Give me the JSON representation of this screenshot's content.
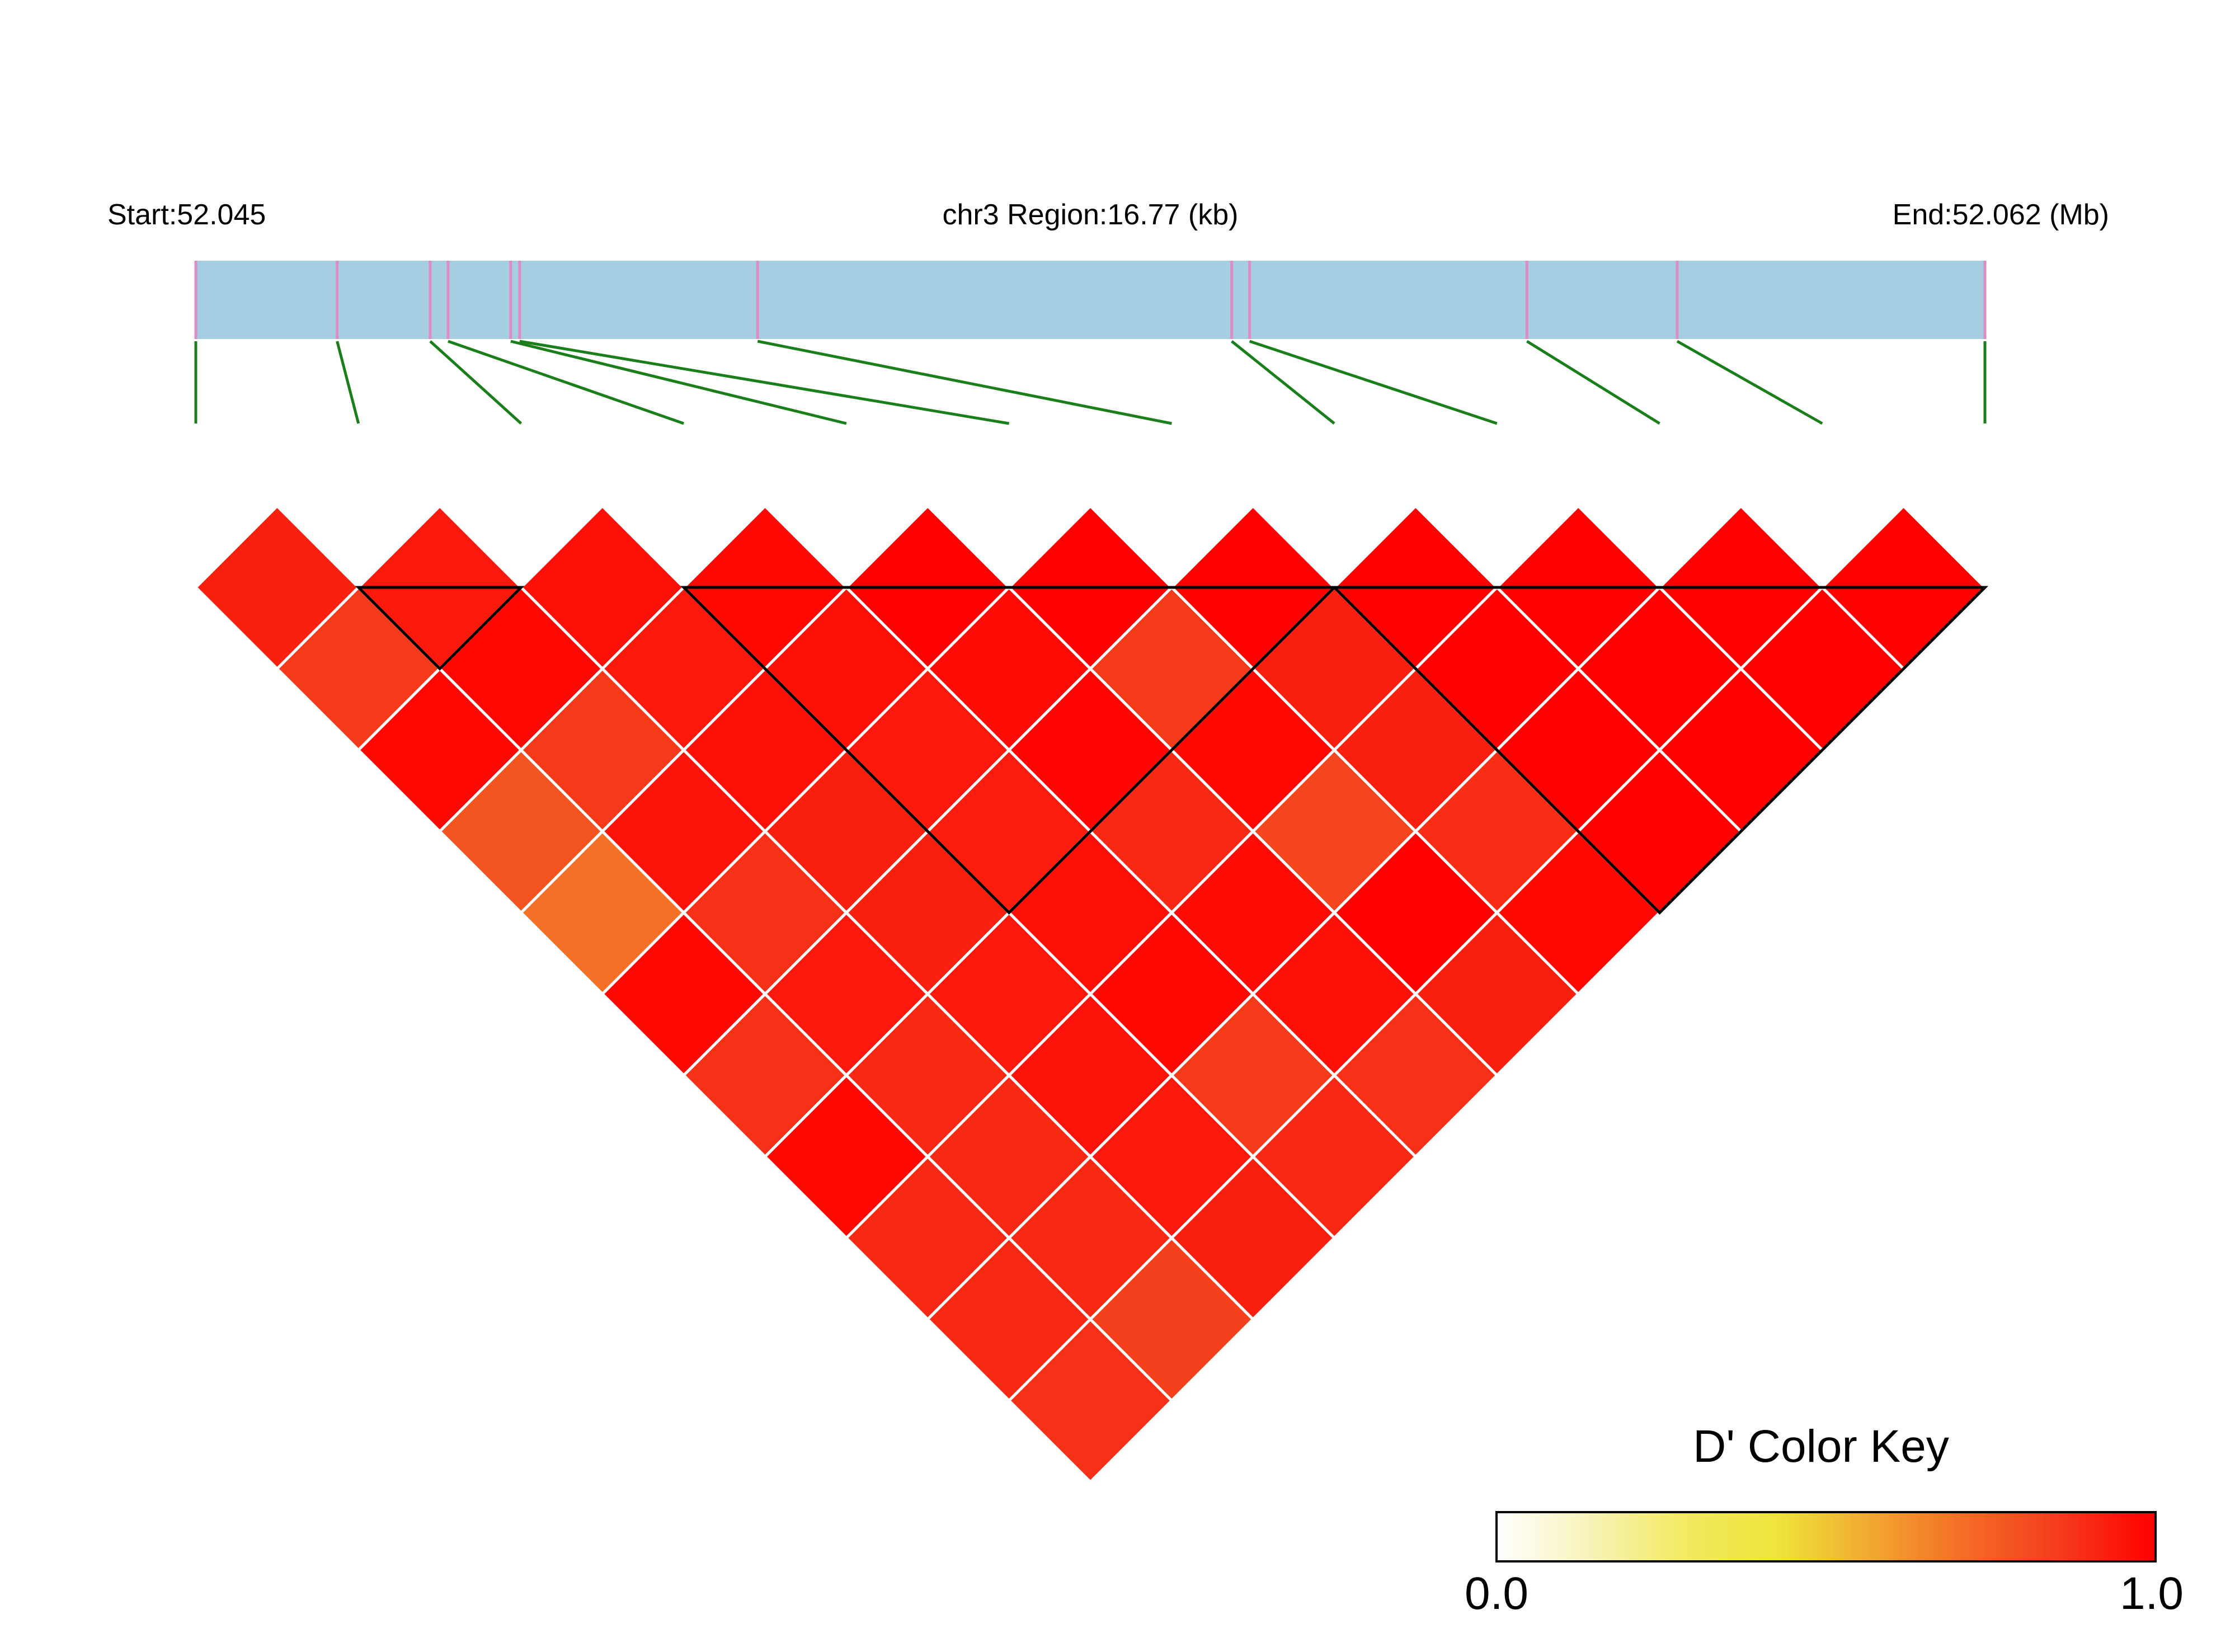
{
  "header": {
    "start_label": "Start:52.045",
    "region_label": "chr3 Region:16.77 (kb)",
    "end_label": "End:52.062 (Mb)"
  },
  "colors": {
    "region_bar": "#a6cee3",
    "snp_tick": "#de8cc4",
    "connector": "#1a7f1a",
    "block_outline": "#000000",
    "cell_border": "#ffffff"
  },
  "legend": {
    "title": "D' Color Key",
    "min_label": "0.0",
    "max_label": "1.0",
    "gradient": [
      "#ffffff",
      "#f7f3b8",
      "#f2ea60",
      "#eee43a",
      "#f2a630",
      "#f46a26",
      "#f53a1c",
      "#ff0000"
    ]
  },
  "chart_data": {
    "type": "heatmap",
    "title": "",
    "region": {
      "chromosome": "chr3",
      "start_mb": 52.045,
      "end_mb": 52.062,
      "length_kb": 16.77
    },
    "snp_positions_frac": [
      0.0,
      0.079,
      0.131,
      0.141,
      0.176,
      0.181,
      0.314,
      0.579,
      0.589,
      0.744,
      0.828,
      1.0
    ],
    "n_snps": 12,
    "dprime_matrix": [
      [
        1.0,
        0.92,
        0.86,
        0.98,
        0.78,
        0.7,
        0.98,
        0.88,
        0.98,
        0.9,
        0.9,
        0.88
      ],
      [
        0.92,
        1.0,
        0.94,
        0.98,
        0.86,
        0.95,
        0.88,
        0.94,
        0.9,
        0.9,
        0.9,
        0.84
      ],
      [
        0.86,
        0.94,
        1.0,
        0.96,
        0.94,
        0.96,
        0.92,
        0.92,
        0.94,
        0.95,
        0.94,
        0.92
      ],
      [
        0.98,
        0.98,
        0.96,
        1.0,
        0.98,
        0.96,
        0.94,
        0.93,
        0.96,
        0.98,
        0.86,
        0.9
      ],
      [
        0.78,
        0.86,
        0.94,
        0.98,
        1.0,
        1.0,
        0.97,
        0.99,
        0.9,
        0.97,
        0.96,
        0.88
      ],
      [
        0.7,
        0.95,
        0.96,
        0.96,
        1.0,
        1.0,
        1.0,
        0.86,
        0.98,
        0.82,
        1.0,
        0.92
      ],
      [
        0.98,
        0.88,
        0.92,
        0.94,
        0.97,
        1.0,
        1.0,
        1.0,
        0.92,
        0.92,
        0.89,
        0.98
      ],
      [
        0.88,
        0.94,
        0.92,
        0.93,
        0.99,
        0.86,
        1.0,
        1.0,
        1.0,
        1.0,
        1.0,
        1.0
      ],
      [
        0.98,
        0.9,
        0.94,
        0.96,
        0.9,
        0.98,
        0.92,
        1.0,
        1.0,
        1.0,
        1.0,
        1.0
      ],
      [
        0.9,
        0.9,
        0.95,
        0.98,
        0.97,
        0.82,
        0.92,
        1.0,
        1.0,
        1.0,
        1.0,
        1.0
      ],
      [
        0.9,
        0.9,
        0.94,
        0.86,
        0.96,
        1.0,
        0.89,
        1.0,
        1.0,
        1.0,
        1.0,
        1.0
      ],
      [
        0.88,
        0.84,
        0.92,
        0.9,
        0.88,
        0.92,
        0.98,
        1.0,
        1.0,
        1.0,
        1.0,
        1.0
      ]
    ],
    "ld_blocks": [
      [
        1,
        2
      ],
      [
        3,
        7
      ],
      [
        7,
        11
      ]
    ],
    "color_scale": {
      "min": 0.0,
      "max": 1.0
    }
  }
}
